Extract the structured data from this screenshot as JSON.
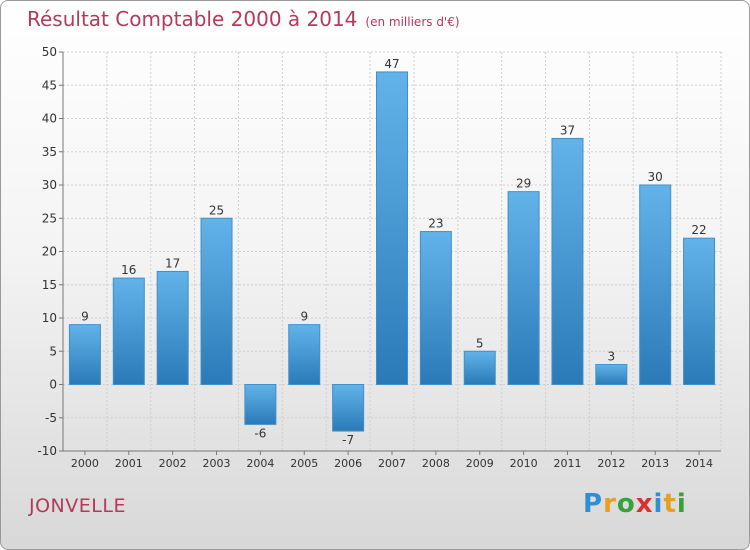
{
  "header": {
    "title": "Résultat Comptable 2000 à 2014",
    "subtitle": "(en milliers d'€)"
  },
  "footer": {
    "town": "JONVELLE",
    "brand_letters": [
      "P",
      "r",
      "o",
      "x",
      "i",
      "t",
      "i"
    ],
    "brand_colors": [
      "#2f8fd6",
      "#e8a020",
      "#3aa03a",
      "#d93030",
      "#2f8fd6",
      "#e8a020",
      "#3aa03a"
    ]
  },
  "colors": {
    "bar_light": "#63b3ea",
    "bar_dark": "#2a7ab8",
    "title": "#b23a5a",
    "grid": "#cfcfcf"
  },
  "chart_data": {
    "type": "bar",
    "title": "Résultat Comptable 2000 à 2014",
    "xlabel": "",
    "ylabel": "",
    "categories": [
      "2000",
      "2001",
      "2002",
      "2003",
      "2004",
      "2005",
      "2006",
      "2007",
      "2008",
      "2009",
      "2010",
      "2011",
      "2012",
      "2013",
      "2014"
    ],
    "values": [
      9,
      16,
      17,
      25,
      -6,
      9,
      -7,
      47,
      23,
      5,
      29,
      37,
      3,
      30,
      22
    ],
    "ylim": [
      -10,
      50
    ],
    "yticks": [
      -10,
      -5,
      0,
      5,
      10,
      15,
      20,
      25,
      30,
      35,
      40,
      45,
      50
    ],
    "grid": true,
    "legend": "none"
  }
}
